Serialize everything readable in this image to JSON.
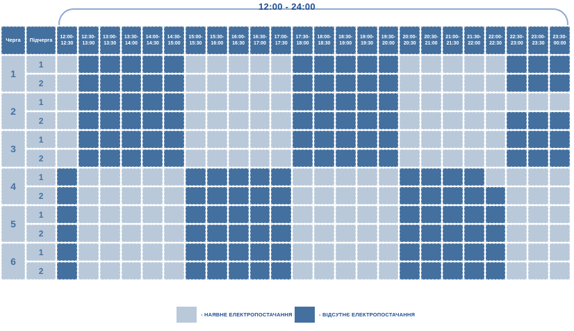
{
  "title": "12:00 - 24:00",
  "colors": {
    "supply": "#b9c9da",
    "outage": "#44709f",
    "header_text": "#ffffff",
    "label_text": "#46719f",
    "title_text": "#1f4e8f",
    "bracket": "#8fa9cf"
  },
  "table": {
    "corner_headers": [
      "Черга",
      "Підчерга"
    ],
    "time_slots": [
      {
        "l1": "12:00-",
        "l2": "12:30"
      },
      {
        "l1": "12:30-",
        "l2": "13:00"
      },
      {
        "l1": "13:00-",
        "l2": "13:30"
      },
      {
        "l1": "13:30-",
        "l2": "14:00"
      },
      {
        "l1": "14:00-",
        "l2": "14:30"
      },
      {
        "l1": "14:30-",
        "l2": "15:00"
      },
      {
        "l1": "15:00-",
        "l2": "15:30"
      },
      {
        "l1": "15:30-",
        "l2": "16:00"
      },
      {
        "l1": "16:00-",
        "l2": "16:30"
      },
      {
        "l1": "16:30-",
        "l2": "17:00"
      },
      {
        "l1": "17:00-",
        "l2": "17:30"
      },
      {
        "l1": "17:30-",
        "l2": "18:00"
      },
      {
        "l1": "18:00-",
        "l2": "18:30"
      },
      {
        "l1": "18:30-",
        "l2": "19:00"
      },
      {
        "l1": "19:00-",
        "l2": "19:30"
      },
      {
        "l1": "19:30-",
        "l2": "20:00"
      },
      {
        "l1": "20:00-",
        "l2": "20:30"
      },
      {
        "l1": "20:30-",
        "l2": "21:00"
      },
      {
        "l1": "21:00-",
        "l2": "21:30"
      },
      {
        "l1": "21:30-",
        "l2": "22:00"
      },
      {
        "l1": "22:00-",
        "l2": "22:30"
      },
      {
        "l1": "22:30-",
        "l2": "23:00"
      },
      {
        "l1": "23:00-",
        "l2": "23:30"
      },
      {
        "l1": "23:30-",
        "l2": "00:00"
      }
    ],
    "cell_legend": {
      "0": "supply",
      "1": "outage"
    },
    "queues": [
      {
        "label": "1",
        "subqueues": [
          {
            "label": "1",
            "cells": "011111000001111100000111"
          },
          {
            "label": "2",
            "cells": "011111000001111100000111"
          }
        ]
      },
      {
        "label": "2",
        "subqueues": [
          {
            "label": "1",
            "cells": "011111000001111100000000"
          },
          {
            "label": "2",
            "cells": "011111000001111100000111"
          }
        ]
      },
      {
        "label": "3",
        "subqueues": [
          {
            "label": "1",
            "cells": "011111000001111100000111"
          },
          {
            "label": "2",
            "cells": "011111000001111100000111"
          }
        ]
      },
      {
        "label": "4",
        "subqueues": [
          {
            "label": "1",
            "cells": "100000111110000011110000"
          },
          {
            "label": "2",
            "cells": "100000111110000011111000"
          }
        ]
      },
      {
        "label": "5",
        "subqueues": [
          {
            "label": "1",
            "cells": "100000111110000011111000"
          },
          {
            "label": "2",
            "cells": "100000111110000011111000"
          }
        ]
      },
      {
        "label": "6",
        "subqueues": [
          {
            "label": "1",
            "cells": "100000111110000011111000"
          },
          {
            "label": "2",
            "cells": "100000111110000011111000"
          }
        ]
      }
    ]
  },
  "legend": [
    {
      "type": "supply",
      "label": "- НАЯВНЕ ЕЛЕКТРОПОСТАЧАННЯ"
    },
    {
      "type": "outage",
      "label": "- ВІДСУТНЄ ЕЛЕКТРОПОСТАЧАННЯ"
    }
  ]
}
